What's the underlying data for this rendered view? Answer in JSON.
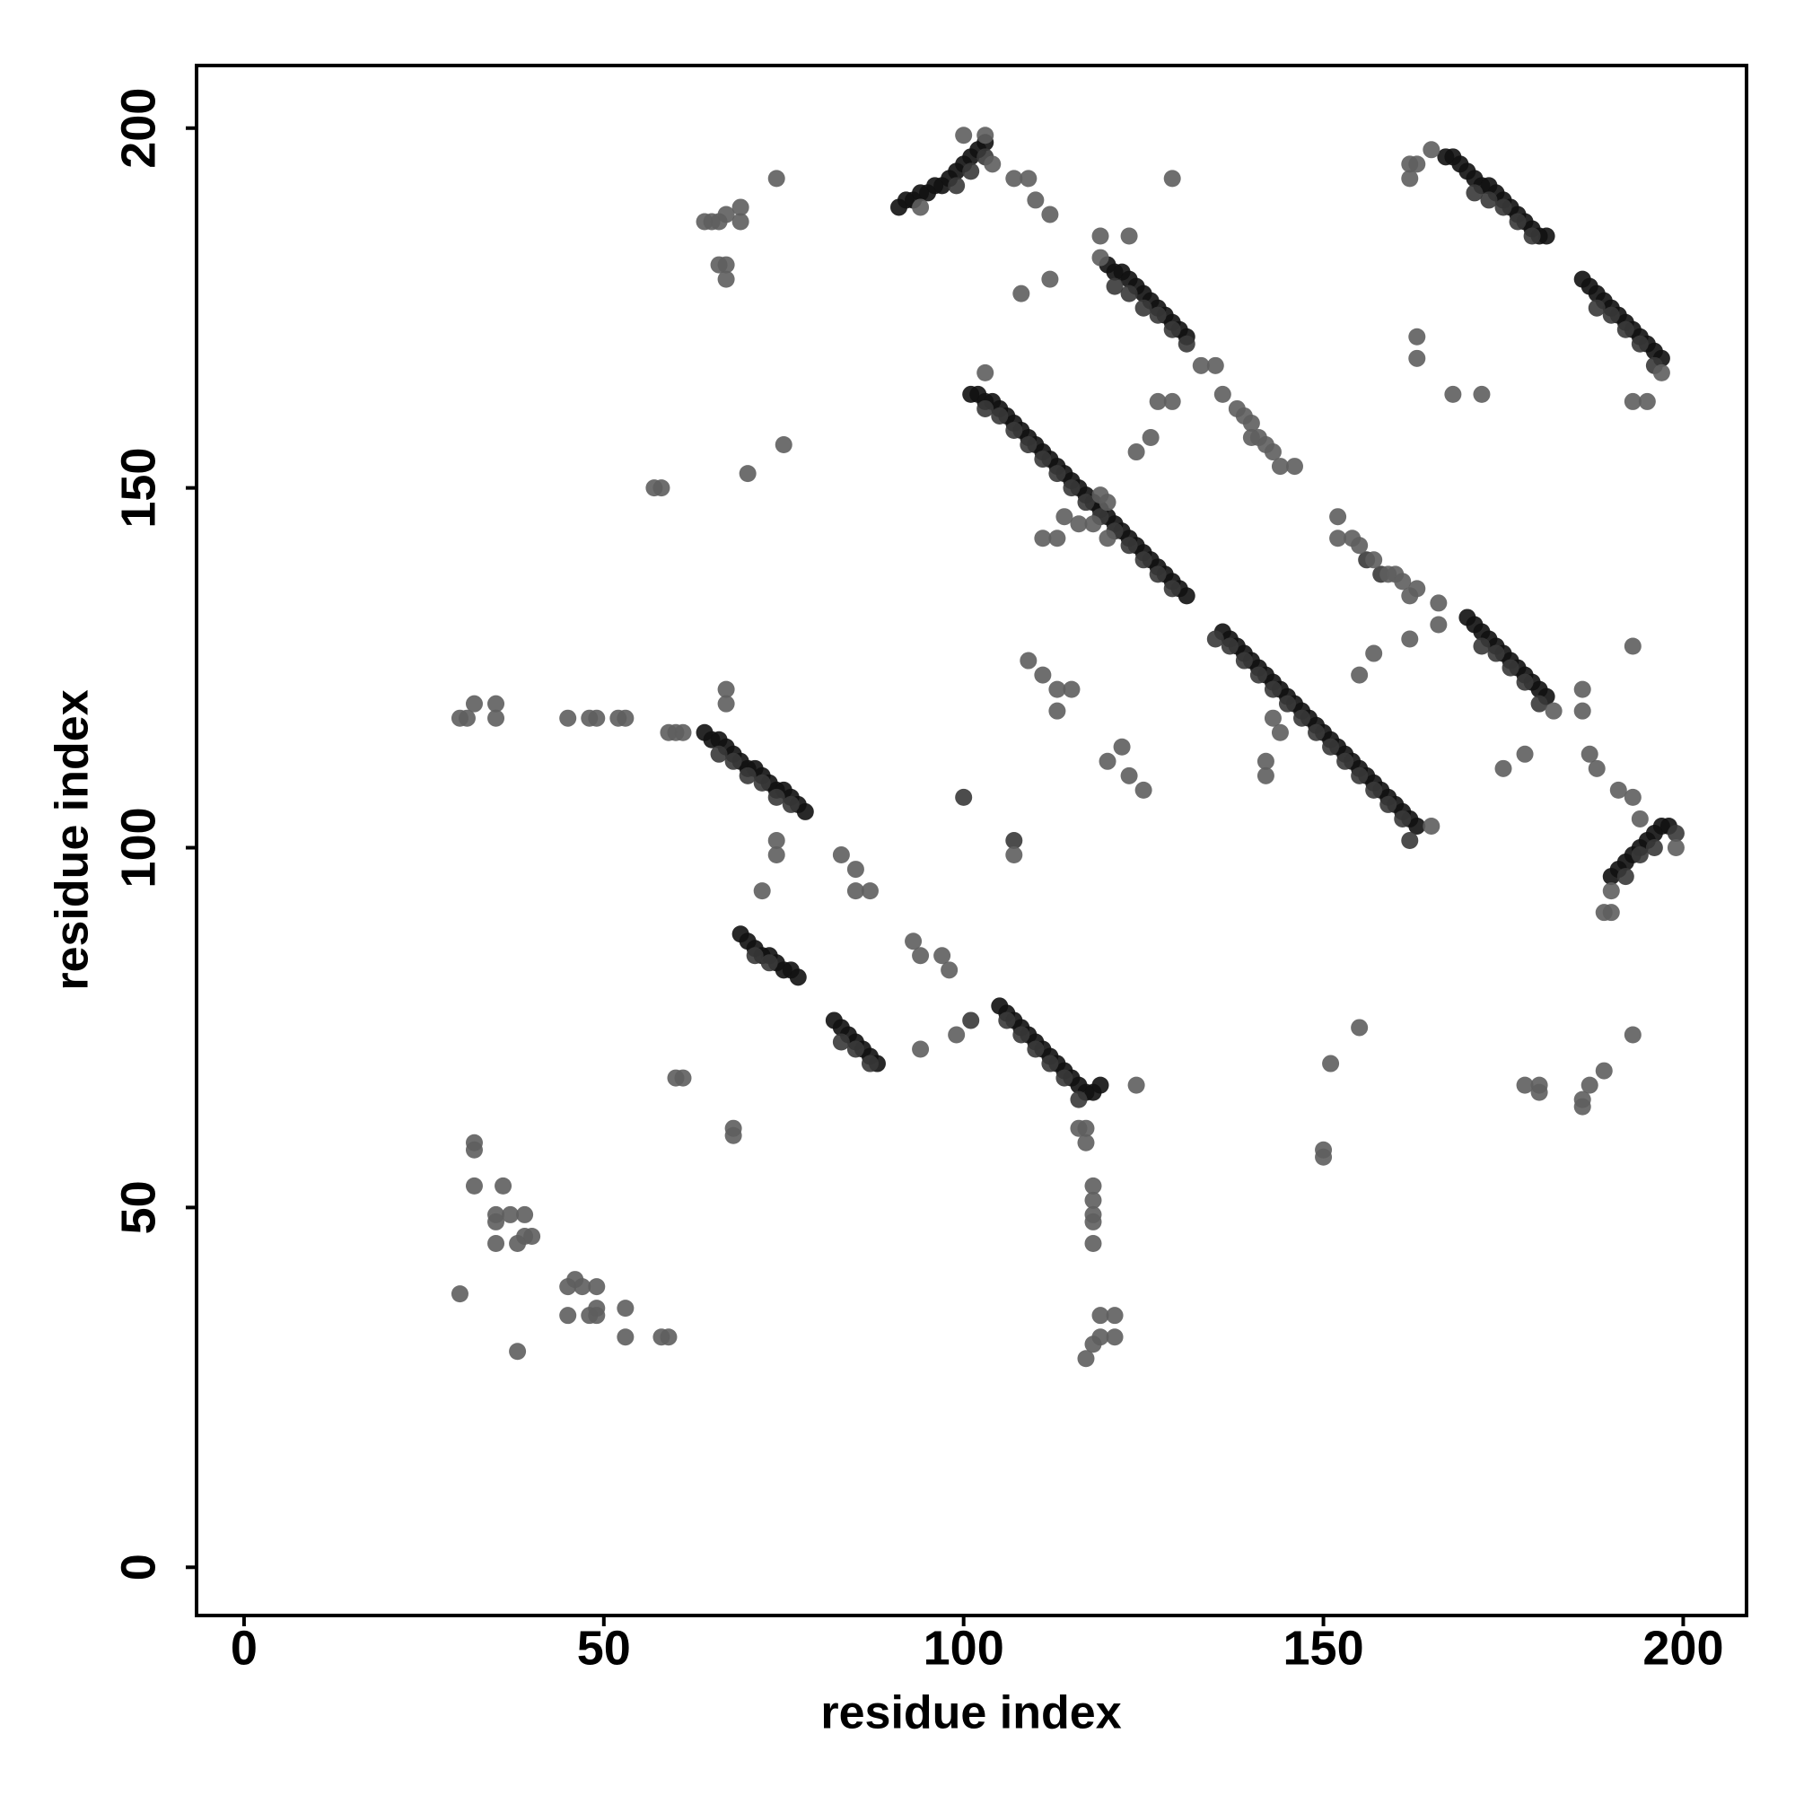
{
  "chart_data": {
    "type": "scatter",
    "xlabel": "residue index",
    "ylabel": "residue index",
    "xlim": [
      -6.6,
      208.8
    ],
    "ylim": [
      -6.7,
      208.7
    ],
    "xticks": [
      0,
      50,
      100,
      150,
      200
    ],
    "yticks": [
      0,
      50,
      100,
      150,
      200
    ],
    "series": [
      {
        "color": "#111111",
        "x": [
          64,
          65,
          66,
          67,
          68,
          69,
          70,
          71,
          72,
          73,
          74,
          75,
          76,
          77,
          78,
          69,
          70,
          71,
          72,
          73,
          74,
          75,
          76,
          77,
          82,
          83,
          84,
          85,
          86,
          87,
          88,
          105,
          106,
          107,
          108,
          109,
          110,
          111,
          112,
          113,
          114,
          115,
          116,
          117,
          118,
          119,
          101,
          102,
          103,
          104,
          105,
          106,
          107,
          108,
          109,
          110,
          111,
          112,
          113,
          114,
          115,
          116,
          117,
          118,
          119,
          120,
          121,
          122,
          123,
          124,
          125,
          126,
          127,
          128,
          129,
          130,
          131,
          120,
          121,
          122,
          123,
          124,
          125,
          126,
          127,
          128,
          129,
          130,
          131,
          167,
          168,
          169,
          170,
          171,
          172,
          173,
          174,
          175,
          176,
          177,
          178,
          179,
          180,
          181,
          186,
          187,
          188,
          189,
          190,
          191,
          192,
          193,
          194,
          195,
          196,
          197,
          136,
          137,
          138,
          139,
          140,
          141,
          142,
          143,
          144,
          145,
          146,
          147,
          148,
          149,
          150,
          151,
          152,
          153,
          154,
          155,
          156,
          157,
          158,
          159,
          160,
          161,
          162,
          163,
          170,
          171,
          172,
          173,
          174,
          175,
          176,
          177,
          178,
          179,
          180,
          181,
          190,
          191,
          192,
          193,
          194,
          195,
          196,
          197,
          198,
          91,
          92,
          93,
          94,
          95,
          96,
          97,
          98,
          99,
          100,
          101,
          102,
          103
        ],
        "y": [
          116,
          115,
          115,
          114,
          113,
          112,
          111,
          111,
          110,
          109,
          108,
          108,
          107,
          106,
          105,
          88,
          87,
          86,
          85,
          85,
          84,
          83,
          83,
          82,
          76,
          75,
          74,
          73,
          72,
          71,
          70,
          78,
          77,
          76,
          75,
          74,
          73,
          72,
          71,
          70,
          69,
          68,
          67,
          66,
          66,
          67,
          163,
          163,
          162,
          162,
          161,
          160,
          159,
          158,
          157,
          156,
          155,
          154,
          153,
          152,
          151,
          150,
          149,
          148,
          147,
          146,
          145,
          144,
          143,
          142,
          141,
          140,
          139,
          138,
          137,
          136,
          135,
          181,
          180,
          180,
          179,
          178,
          177,
          176,
          175,
          174,
          173,
          172,
          171,
          196,
          196,
          195,
          194,
          193,
          192,
          192,
          191,
          190,
          189,
          188,
          187,
          186,
          185,
          185,
          179,
          178,
          177,
          176,
          175,
          174,
          173,
          172,
          171,
          170,
          169,
          168,
          130,
          129,
          128,
          127,
          126,
          125,
          124,
          123,
          122,
          121,
          120,
          119,
          118,
          117,
          116,
          115,
          114,
          113,
          112,
          111,
          110,
          109,
          108,
          107,
          106,
          105,
          104,
          103,
          132,
          131,
          130,
          129,
          128,
          127,
          126,
          125,
          124,
          123,
          122,
          121,
          96,
          97,
          98,
          99,
          100,
          101,
          102,
          103,
          103,
          189,
          190,
          190,
          191,
          191,
          192,
          192,
          193,
          194,
          195,
          196,
          197,
          198
        ]
      },
      {
        "color": "#383838",
        "x": [
          66,
          68,
          70,
          72,
          74,
          76,
          71,
          73,
          83,
          85,
          87,
          106,
          108,
          110,
          112,
          114,
          116,
          103,
          105,
          107,
          109,
          111,
          113,
          115,
          117,
          119,
          121,
          123,
          125,
          127,
          129,
          121,
          123,
          125,
          127,
          129,
          131,
          171,
          173,
          175,
          177,
          179,
          188,
          190,
          192,
          194,
          196,
          137,
          139,
          141,
          143,
          145,
          147,
          149,
          151,
          153,
          155,
          157,
          159,
          161,
          172,
          174,
          176,
          178,
          180,
          192,
          194,
          196,
          99,
          101,
          103,
          156,
          158,
          162,
          199,
          107,
          101,
          100,
          135
        ],
        "y": [
          113,
          112,
          110,
          109,
          107,
          106,
          85,
          84,
          73,
          72,
          70,
          76,
          74,
          72,
          70,
          68,
          65,
          161,
          160,
          158,
          156,
          154,
          152,
          150,
          148,
          146,
          144,
          142,
          140,
          138,
          136,
          178,
          177,
          175,
          174,
          172,
          170,
          191,
          190,
          189,
          187,
          185,
          175,
          174,
          172,
          170,
          167,
          128,
          126,
          124,
          122,
          120,
          118,
          116,
          114,
          112,
          110,
          108,
          106,
          104,
          128,
          127,
          125,
          123,
          120,
          96,
          99,
          100,
          192,
          194,
          196,
          140,
          138,
          101,
          102,
          101,
          76,
          107,
          129
        ]
      },
      {
        "color": "#5e5e5e",
        "x": [
          30,
          31,
          32,
          35,
          35,
          45,
          48,
          49,
          52,
          53,
          59,
          60,
          61,
          57,
          58,
          70,
          75,
          74,
          64,
          65,
          66,
          67,
          69,
          69,
          66,
          67,
          67,
          67,
          67,
          74,
          74,
          72,
          60,
          61,
          68,
          68,
          83,
          85,
          85,
          87,
          93,
          94,
          97,
          98,
          94,
          99,
          107,
          109,
          111,
          113,
          115,
          113,
          120,
          122,
          123,
          125,
          117,
          116,
          117,
          118,
          118,
          118,
          118,
          118,
          119,
          121,
          119,
          121,
          118,
          117,
          124,
          126,
          124,
          127,
          129,
          163,
          155,
          157,
          162,
          155,
          151,
          150,
          150,
          178,
          180,
          180,
          186,
          186,
          187,
          189,
          178,
          175,
          32,
          32,
          32,
          36,
          35,
          35,
          37,
          35,
          39,
          39,
          40,
          38,
          30,
          45,
          46,
          47,
          49,
          45,
          48,
          49,
          49,
          53,
          53,
          58,
          59,
          38,
          103,
          111,
          113,
          114,
          116,
          118,
          120,
          119,
          120,
          119,
          133,
          135,
          129,
          119,
          123,
          108,
          112,
          162,
          163,
          162,
          165,
          195,
          193,
          197,
          163,
          163,
          168,
          172,
          165,
          142,
          142,
          144,
          143,
          166,
          166,
          186,
          186,
          182,
          199,
          190,
          189,
          190,
          194,
          193,
          191,
          188,
          187,
          193,
          193,
          100,
          103,
          104,
          107,
          109,
          110,
          112,
          94,
          152,
          152,
          154,
          155,
          157,
          159,
          160,
          161,
          162,
          136,
          138,
          139,
          140,
          140,
          141,
          142,
          143,
          144,
          146
        ],
        "y": [
          118,
          118,
          120,
          120,
          118,
          118,
          118,
          118,
          118,
          118,
          116,
          116,
          116,
          150,
          150,
          152,
          156,
          193,
          187,
          187,
          187,
          188,
          189,
          187,
          181,
          181,
          179,
          122,
          120,
          101,
          99,
          94,
          68,
          68,
          61,
          60,
          99,
          97,
          94,
          94,
          87,
          85,
          85,
          83,
          72,
          74,
          99,
          126,
          124,
          122,
          122,
          119,
          112,
          114,
          110,
          108,
          61,
          61,
          59,
          53,
          51,
          49,
          48,
          45,
          35,
          35,
          32,
          32,
          31,
          29,
          67,
          157,
          155,
          162,
          193,
          136,
          124,
          127,
          129,
          75,
          70,
          58,
          57,
          67,
          67,
          66,
          64,
          65,
          67,
          69,
          113,
          111,
          59,
          58,
          53,
          53,
          49,
          48,
          49,
          45,
          49,
          46,
          46,
          45,
          38,
          39,
          40,
          39,
          39,
          35,
          35,
          36,
          35,
          36,
          32,
          32,
          32,
          30,
          166,
          143,
          143,
          146,
          145,
          145,
          143,
          149,
          148,
          182,
          167,
          167,
          162,
          185,
          185,
          177,
          179,
          195,
          195,
          193,
          197,
          162,
          162,
          166,
          171,
          168,
          163,
          163,
          103,
          110,
          112,
          116,
          118,
          131,
          134,
          122,
          119,
          119,
          100,
          94,
          91,
          91,
          104,
          107,
          108,
          111,
          113,
          128,
          74,
          199,
          199,
          195,
          193,
          193,
          190,
          188,
          189,
          146,
          143,
          143,
          142,
          140,
          138,
          138,
          137,
          135,
          163,
          161,
          160,
          159,
          157,
          157,
          156,
          155,
          153,
          153
        ]
      }
    ]
  }
}
